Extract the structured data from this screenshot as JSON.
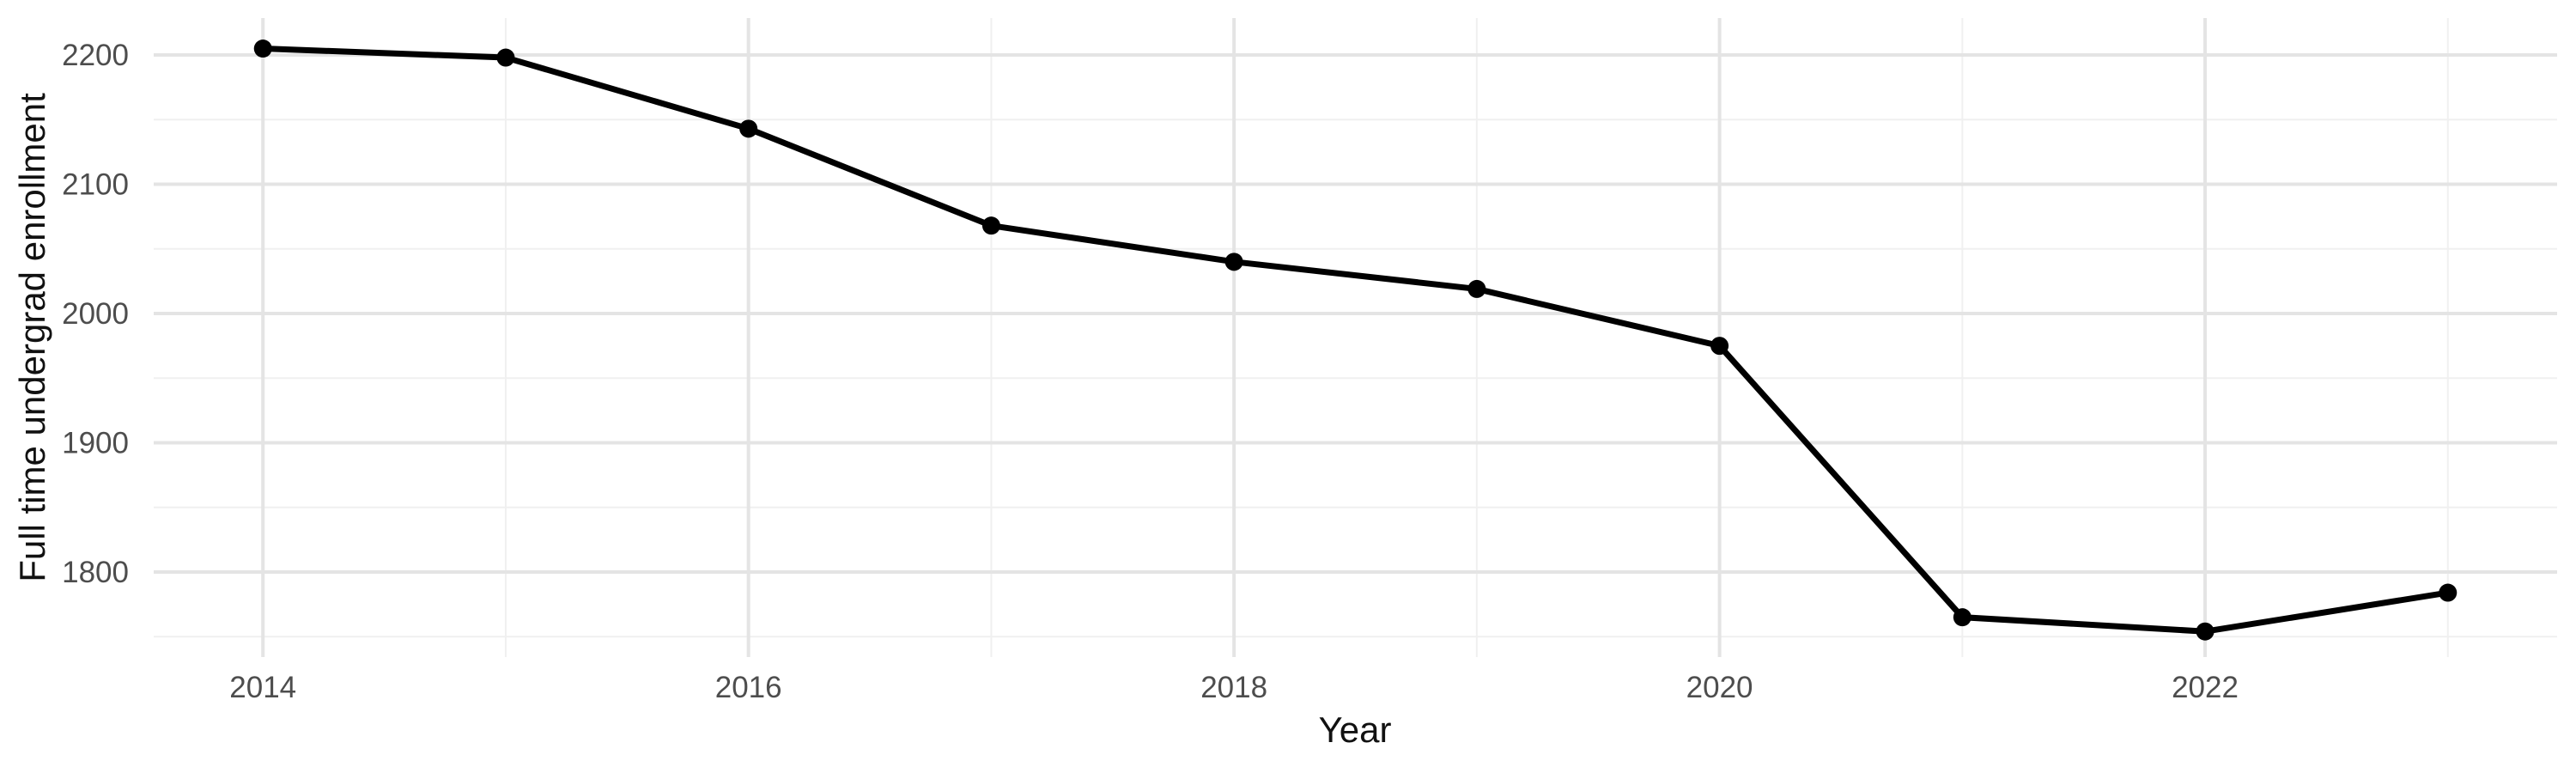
{
  "figure": {
    "background": "#FFFFFF"
  },
  "colors": {
    "line": "#000000",
    "point": "#000000",
    "grid_major": "#E4E4E4",
    "grid_minor": "#F0F0F0",
    "tick_label": "#4D4D4D",
    "axis_title": "#111111",
    "background": "#FFFFFF"
  },
  "chart_data": {
    "type": "line",
    "title": "",
    "xlabel": "Year",
    "ylabel": "Full time undergrad enrollment",
    "x": [
      2014,
      2015,
      2016,
      2017,
      2018,
      2019,
      2020,
      2021,
      2022,
      2023
    ],
    "values": [
      2205,
      2198,
      2143,
      2068,
      2040,
      2019,
      1975,
      1765,
      1754,
      1784
    ],
    "x_breaks": [
      2014,
      2016,
      2018,
      2020,
      2022
    ],
    "x_break_labels": [
      "2014",
      "2016",
      "2018",
      "2020",
      "2022"
    ],
    "x_minor_breaks": [
      2015,
      2017,
      2019,
      2021,
      2023
    ],
    "y_breaks": [
      1800,
      1900,
      2000,
      2100,
      2200
    ],
    "y_break_labels": [
      "1800",
      "1900",
      "2000",
      "2100",
      "2200"
    ],
    "y_minor_breaks": [
      1750,
      1850,
      1950,
      2050,
      2150
    ],
    "xlim": [
      2013.55,
      2023.45
    ],
    "ylim": [
      1734.2,
      2228.6
    ],
    "grid": true,
    "legend_position": "none",
    "point_radius": 10.5,
    "line_width": 7
  }
}
